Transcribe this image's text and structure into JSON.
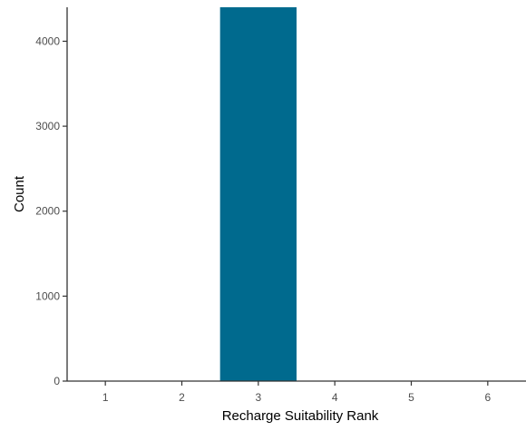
{
  "chart_data": {
    "type": "bar",
    "xlabel": "Recharge Suitability Rank",
    "ylabel": "Count",
    "categories": [
      "1",
      "2",
      "3",
      "4",
      "5",
      "6"
    ],
    "values": [
      0,
      0,
      4400,
      0,
      0,
      0
    ],
    "xlim": [
      0.5,
      6.5
    ],
    "ylim": [
      0,
      4400
    ],
    "yticks": [
      0,
      1000,
      2000,
      3000,
      4000
    ],
    "xticks": [
      1,
      2,
      3,
      4,
      5,
      6
    ],
    "bar_color": "#006a8e",
    "axis_color": "#333333",
    "grid": false,
    "legend": "none"
  }
}
